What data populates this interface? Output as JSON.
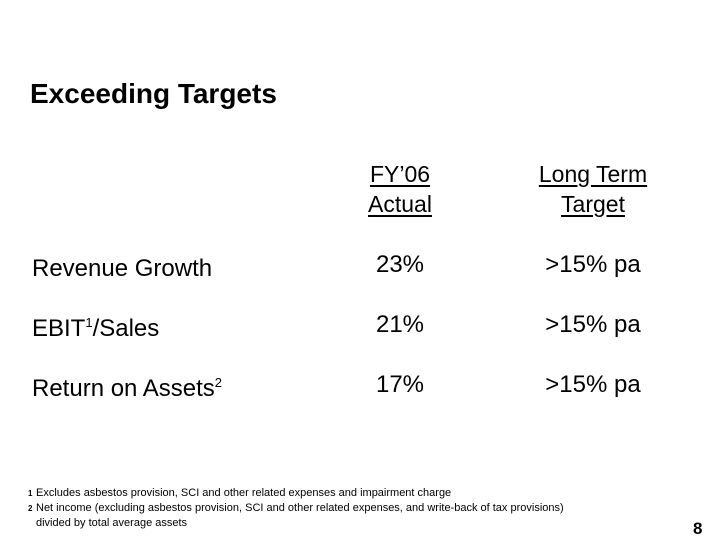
{
  "slide": {
    "title": "Exceeding Targets",
    "page_number": "8",
    "background_color": "#ffffff",
    "text_color": "#000000"
  },
  "table": {
    "col_headers": [
      {
        "line1": "FY’06",
        "line2": "Actual"
      },
      {
        "line1": "Long Term",
        "line2": "Target"
      }
    ],
    "rows": [
      {
        "label_pre": "Revenue Growth",
        "label_sup": "",
        "label_post": "",
        "actual": "23%",
        "target": ">15% pa"
      },
      {
        "label_pre": "EBIT",
        "label_sup": "1",
        "label_post": "/Sales",
        "actual": "21%",
        "target": ">15% pa"
      },
      {
        "label_pre": "Return on Assets",
        "label_sup": "2",
        "label_post": "",
        "actual": "17%",
        "target": ">15% pa"
      }
    ]
  },
  "footnotes": {
    "lines": [
      {
        "marker": "1",
        "text": "Excludes asbestos provision, SCI and other related expenses and impairment charge"
      },
      {
        "marker": "2",
        "text": "Net income (excluding asbestos provision, SCI and other related expenses, and write-back of tax provisions)"
      },
      {
        "marker": "",
        "text": "divided by total average assets"
      }
    ]
  }
}
